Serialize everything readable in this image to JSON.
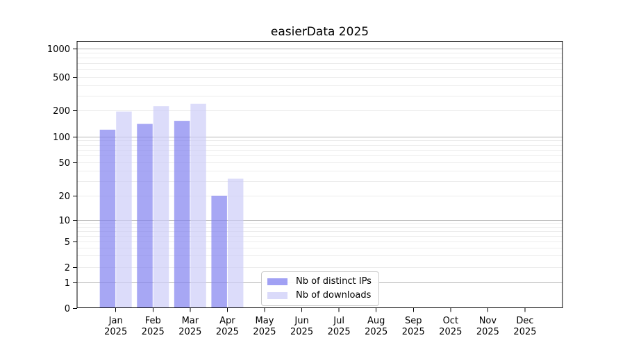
{
  "chart_data": {
    "type": "bar",
    "title": "easierData 2025",
    "xlabel": "",
    "ylabel": "",
    "y_scale": "log-with-zero",
    "ylim": [
      0,
      1200
    ],
    "y_ticks": [
      0,
      1,
      2,
      5,
      10,
      20,
      50,
      100,
      200,
      500,
      1000
    ],
    "grid": {
      "orientation": "horizontal",
      "major_values": [
        1,
        10,
        100,
        1000
      ],
      "minor_pattern": "log minors 2-9 per decade",
      "major_color": "#b3b3b3",
      "minor_color": "#ececec"
    },
    "categories": [
      [
        "Jan",
        "2025"
      ],
      [
        "Feb",
        "2025"
      ],
      [
        "Mar",
        "2025"
      ],
      [
        "Apr",
        "2025"
      ],
      [
        "May",
        "2025"
      ],
      [
        "Jun",
        "2025"
      ],
      [
        "Jul",
        "2025"
      ],
      [
        "Aug",
        "2025"
      ],
      [
        "Sep",
        "2025"
      ],
      [
        "Oct",
        "2025"
      ],
      [
        "Nov",
        "2025"
      ],
      [
        "Dec",
        "2025"
      ]
    ],
    "series": [
      {
        "name": "Nb of distinct IPs",
        "color": "#8282f0",
        "opacity": 0.7,
        "values": [
          120,
          140,
          152,
          20,
          null,
          null,
          null,
          null,
          null,
          null,
          null,
          null
        ]
      },
      {
        "name": "Nb of downloads",
        "color": "#cdcdf8",
        "opacity": 0.7,
        "values": [
          195,
          225,
          240,
          32,
          null,
          null,
          null,
          null,
          null,
          null,
          null,
          null
        ]
      }
    ],
    "legend_position": "inside-bottom-center",
    "axis_color": "#000000",
    "text_color": "#000000"
  }
}
